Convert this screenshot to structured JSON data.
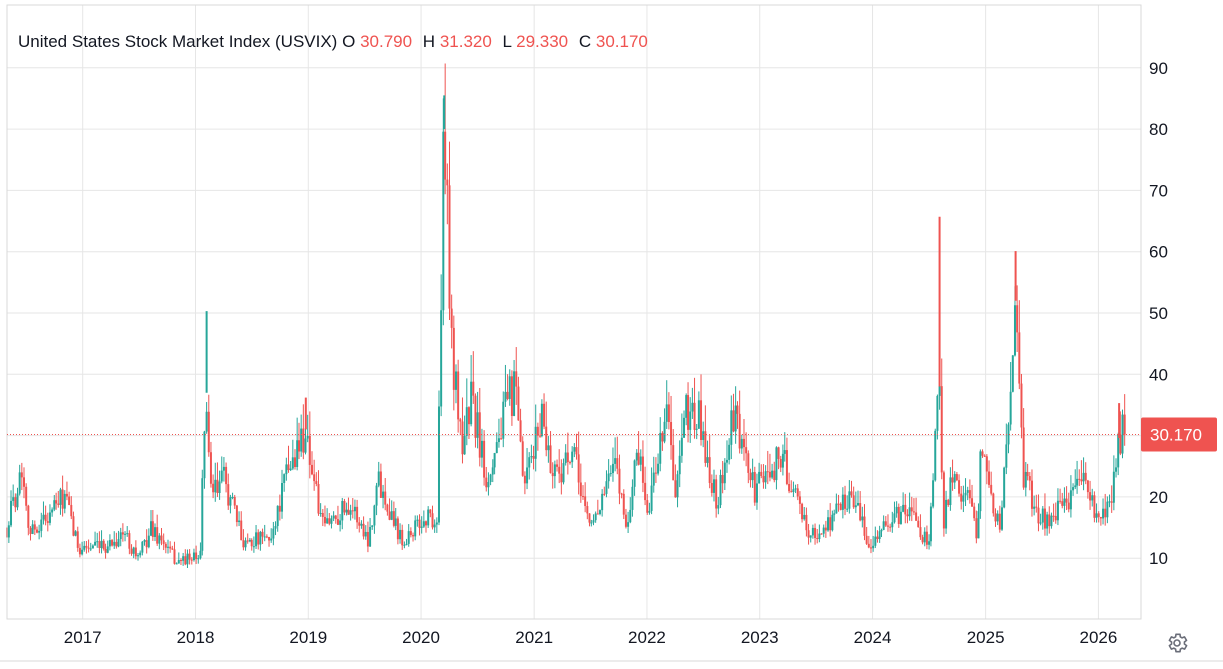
{
  "legend": {
    "symbol": "United States Stock Market Index (USVIX)",
    "o_label": "O",
    "o_value": "30.790",
    "h_label": "H",
    "h_value": "31.320",
    "l_label": "L",
    "l_value": "29.330",
    "c_label": "C",
    "c_value": "30.170"
  },
  "colors": {
    "up": "#26a69a",
    "down": "#ef5350",
    "grid": "#e6e6e6",
    "text": "#131722",
    "last_price_bg": "#ef5350"
  },
  "icons": {
    "settings": "gear-icon"
  },
  "chart_data": {
    "type": "candlestick",
    "title": "United States Stock Market Index (USVIX)",
    "last_value": 30.17,
    "last_value_label": "30.170",
    "x_ticks": [
      "2017",
      "2018",
      "2019",
      "2020",
      "2021",
      "2022",
      "2023",
      "2024",
      "2025",
      "2026"
    ],
    "y_ticks": [
      "10",
      "20",
      "30",
      "40",
      "50",
      "60",
      "70",
      "80",
      "90"
    ],
    "xlim": [
      "2016-05-01",
      "2026-04-10"
    ],
    "ylim": [
      0,
      100
    ],
    "grid": true,
    "anchors": [
      {
        "date": "2016-05-01",
        "value": 15
      },
      {
        "date": "2016-06-20",
        "value": 25
      },
      {
        "date": "2016-07-15",
        "value": 14
      },
      {
        "date": "2016-09-10",
        "value": 17
      },
      {
        "date": "2016-11-05",
        "value": 20
      },
      {
        "date": "2016-12-15",
        "value": 12
      },
      {
        "date": "2017-03-01",
        "value": 11.5
      },
      {
        "date": "2017-05-17",
        "value": 14
      },
      {
        "date": "2017-07-01",
        "value": 10
      },
      {
        "date": "2017-08-11",
        "value": 15
      },
      {
        "date": "2017-11-01",
        "value": 9.5
      },
      {
        "date": "2018-01-15",
        "value": 10
      },
      {
        "date": "2018-02-06",
        "value": 37
      },
      {
        "date": "2018-02-20",
        "value": 20
      },
      {
        "date": "2018-04-05",
        "value": 23
      },
      {
        "date": "2018-06-01",
        "value": 13
      },
      {
        "date": "2018-09-01",
        "value": 13
      },
      {
        "date": "2018-10-25",
        "value": 24
      },
      {
        "date": "2018-12-24",
        "value": 31
      },
      {
        "date": "2019-02-15",
        "value": 15
      },
      {
        "date": "2019-05-15",
        "value": 19
      },
      {
        "date": "2019-07-15",
        "value": 13
      },
      {
        "date": "2019-08-15",
        "value": 23
      },
      {
        "date": "2019-11-01",
        "value": 13
      },
      {
        "date": "2020-01-31",
        "value": 17
      },
      {
        "date": "2020-02-21",
        "value": 15
      },
      {
        "date": "2020-03-16",
        "value": 80
      },
      {
        "date": "2020-04-15",
        "value": 40
      },
      {
        "date": "2020-05-15",
        "value": 29
      },
      {
        "date": "2020-06-12",
        "value": 36
      },
      {
        "date": "2020-08-01",
        "value": 23
      },
      {
        "date": "2020-09-08",
        "value": 30
      },
      {
        "date": "2020-10-28",
        "value": 38
      },
      {
        "date": "2020-12-01",
        "value": 21
      },
      {
        "date": "2021-01-27",
        "value": 34
      },
      {
        "date": "2021-03-01",
        "value": 24
      },
      {
        "date": "2021-05-12",
        "value": 26
      },
      {
        "date": "2021-07-01",
        "value": 15
      },
      {
        "date": "2021-09-20",
        "value": 25
      },
      {
        "date": "2021-11-01",
        "value": 15
      },
      {
        "date": "2021-11-30",
        "value": 29
      },
      {
        "date": "2022-01-05",
        "value": 17
      },
      {
        "date": "2022-03-07",
        "value": 36
      },
      {
        "date": "2022-04-01",
        "value": 19
      },
      {
        "date": "2022-05-09",
        "value": 34
      },
      {
        "date": "2022-06-16",
        "value": 33
      },
      {
        "date": "2022-08-15",
        "value": 19
      },
      {
        "date": "2022-10-10",
        "value": 33
      },
      {
        "date": "2022-12-15",
        "value": 21
      },
      {
        "date": "2023-03-13",
        "value": 27
      },
      {
        "date": "2023-05-15",
        "value": 17
      },
      {
        "date": "2023-07-01",
        "value": 13
      },
      {
        "date": "2023-10-27",
        "value": 21
      },
      {
        "date": "2023-12-15",
        "value": 12.5
      },
      {
        "date": "2024-04-19",
        "value": 18
      },
      {
        "date": "2024-07-01",
        "value": 12.5
      },
      {
        "date": "2024-08-05",
        "value": 38
      },
      {
        "date": "2024-08-20",
        "value": 16
      },
      {
        "date": "2024-09-06",
        "value": 22
      },
      {
        "date": "2024-11-05",
        "value": 21
      },
      {
        "date": "2024-12-01",
        "value": 13.5
      },
      {
        "date": "2024-12-18",
        "value": 27
      },
      {
        "date": "2025-02-15",
        "value": 15
      },
      {
        "date": "2025-03-10",
        "value": 27
      },
      {
        "date": "2025-04-08",
        "value": 52
      },
      {
        "date": "2025-05-01",
        "value": 24
      },
      {
        "date": "2025-06-20",
        "value": 17
      },
      {
        "date": "2025-08-01",
        "value": 16
      },
      {
        "date": "2025-10-10",
        "value": 21
      },
      {
        "date": "2025-11-20",
        "value": 23
      },
      {
        "date": "2026-01-01",
        "value": 15
      },
      {
        "date": "2026-02-10",
        "value": 19
      },
      {
        "date": "2026-03-10",
        "value": 30
      },
      {
        "date": "2026-03-27",
        "value": 30.2
      }
    ],
    "spikes": [
      {
        "date": "2018-02-06",
        "high": 50.3,
        "color": "up"
      },
      {
        "date": "2018-12-24",
        "high": 36.2,
        "color": "down"
      },
      {
        "date": "2020-03-16",
        "high": 85.5,
        "color": "up"
      },
      {
        "date": "2020-03-18",
        "high": 74.2,
        "color": "down"
      },
      {
        "date": "2024-08-05",
        "high": 65.7,
        "color": "down"
      },
      {
        "date": "2025-04-08",
        "high": 60.1,
        "color": "down"
      },
      {
        "date": "2025-04-07",
        "high": 45.5,
        "color": "up"
      },
      {
        "date": "2026-03-09",
        "high": 35.3,
        "color": "down"
      }
    ]
  }
}
